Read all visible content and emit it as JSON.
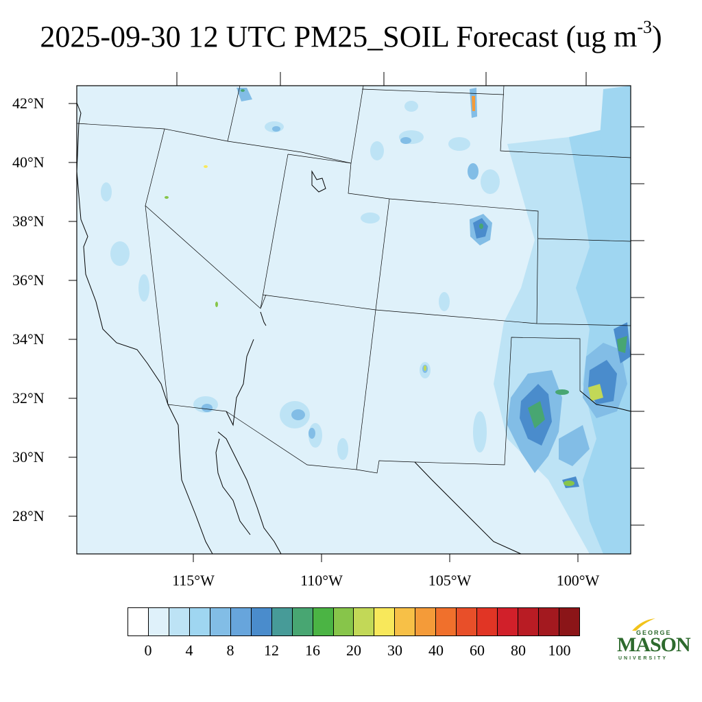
{
  "title": {
    "text": "2025-09-30 12 UTC PM25_SOIL Forecast (ug m",
    "superscript": "-3",
    "close": ")"
  },
  "map": {
    "background_color": "#dff1fa",
    "lat_labels": [
      "42°N",
      "40°N",
      "38°N",
      "36°N",
      "34°N",
      "32°N",
      "30°N",
      "28°N"
    ],
    "lon_labels": [
      "115°W",
      "110°W",
      "105°W",
      "100°W"
    ]
  },
  "colorbar": {
    "colors": [
      "#ffffff",
      "#dff1fa",
      "#bde3f5",
      "#9fd6f1",
      "#82bde6",
      "#67a5dc",
      "#4a8ccc",
      "#479b98",
      "#48a672",
      "#4bb444",
      "#87c54a",
      "#c2d857",
      "#f8e85b",
      "#f7c047",
      "#f49b39",
      "#f0702c",
      "#e84f29",
      "#e13525",
      "#d1202a",
      "#b91c24",
      "#a3191f",
      "#8b1518"
    ],
    "labels": [
      "0",
      "4",
      "8",
      "12",
      "16",
      "20",
      "30",
      "40",
      "60",
      "80",
      "100"
    ]
  },
  "logo": {
    "line1": "GEORGE",
    "line2": "MASON",
    "line3": "UNIVERSITY",
    "color": "#2d6a2d",
    "accent": "#f2c31b"
  }
}
